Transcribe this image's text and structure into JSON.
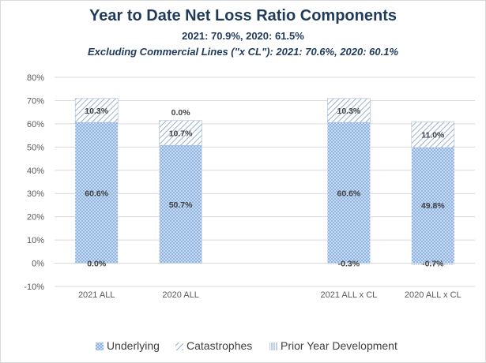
{
  "chart_data": {
    "type": "bar",
    "stacked": true,
    "title": "Year to Date Net Loss Ratio Components",
    "subtitle": "2021: 70.9%, 2020: 61.5%",
    "subtitle2": "Excluding Commercial Lines (\"x CL\"): 2021: 70.6%, 2020: 60.1%",
    "categories": [
      "2021 ALL",
      "2020 ALL",
      "",
      "2021 ALL x CL",
      "2020 ALL x CL"
    ],
    "ylim": [
      -10,
      80
    ],
    "yticks": [
      "-10%",
      "0%",
      "10%",
      "20%",
      "30%",
      "40%",
      "50%",
      "60%",
      "70%",
      "80%"
    ],
    "grid": true,
    "legend_position": "bottom",
    "series": [
      {
        "name": "Underlying",
        "values": [
          60.6,
          50.7,
          null,
          60.6,
          49.8
        ],
        "labels": [
          "60.6%",
          "50.7%",
          "",
          "60.6%",
          "49.8%"
        ],
        "color": "#a9c5ea",
        "pattern": "dots"
      },
      {
        "name": "Catastrophes",
        "values": [
          10.3,
          10.7,
          null,
          10.3,
          11.0
        ],
        "labels": [
          "10.3%",
          "10.7%",
          "",
          "10.3%",
          "11.0%"
        ],
        "color": "#8fa8c8",
        "pattern": "hatch"
      },
      {
        "name": "Prior Year Development",
        "values": [
          0.0,
          0.0,
          null,
          -0.3,
          -0.7
        ],
        "labels": [
          "0.0%",
          "0.0%",
          "",
          "-0.3%",
          "-0.7%"
        ],
        "color": "#9ab3d6",
        "pattern": "vlines"
      }
    ]
  }
}
